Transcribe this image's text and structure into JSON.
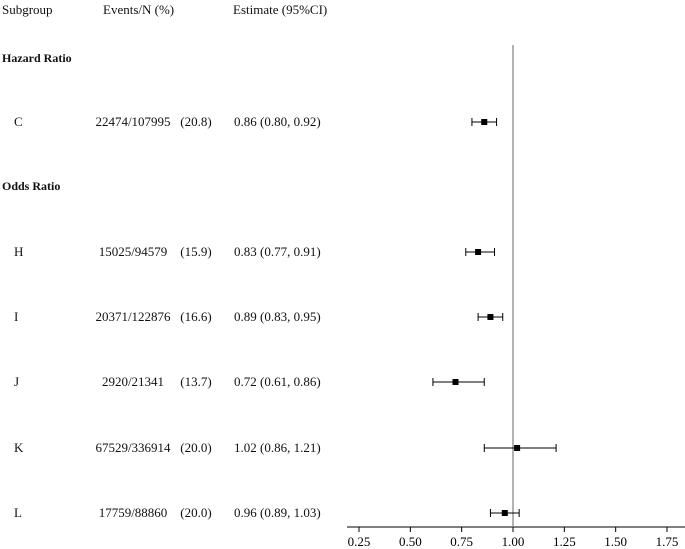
{
  "header": {
    "subgroup": "Subgroup",
    "events": "Events/N (%)",
    "estimate": "Estimate (95%CI)"
  },
  "sections": {
    "hazard": "Hazard Ratio",
    "odds": "Odds Ratio"
  },
  "rows": [
    {
      "label": "C",
      "events": "22474/107995",
      "pct": "(20.8)",
      "estimate": "0.86 (0.80, 0.92)"
    },
    {
      "label": "H",
      "events": "15025/94579",
      "pct": "(15.9)",
      "estimate": "0.83 (0.77, 0.91)"
    },
    {
      "label": "I",
      "events": "20371/122876",
      "pct": "(16.6)",
      "estimate": "0.89 (0.83, 0.95)"
    },
    {
      "label": "J",
      "events": "2920/21341",
      "pct": "(13.7)",
      "estimate": "0.72 (0.61, 0.86)"
    },
    {
      "label": "K",
      "events": "67529/336914",
      "pct": "(20.0)",
      "estimate": "1.02 (0.86, 1.21)"
    },
    {
      "label": "L",
      "events": "17759/88860",
      "pct": "(20.0)",
      "estimate": "0.96 (0.89, 1.03)"
    }
  ],
  "chart_data": {
    "type": "forest",
    "reference_line": 1.0,
    "xlim": [
      0.2,
      1.8
    ],
    "xticks": [
      "0.25",
      "0.50",
      "0.75",
      "1.00",
      "1.25",
      "1.50",
      "1.75"
    ],
    "xtick_values": [
      0.25,
      0.5,
      0.75,
      1.0,
      1.25,
      1.5,
      1.75
    ],
    "points": [
      {
        "label": "C",
        "group": "Hazard Ratio",
        "estimate": 0.86,
        "lower": 0.8,
        "upper": 0.92
      },
      {
        "label": "H",
        "group": "Odds Ratio",
        "estimate": 0.83,
        "lower": 0.77,
        "upper": 0.91
      },
      {
        "label": "I",
        "group": "Odds Ratio",
        "estimate": 0.89,
        "lower": 0.83,
        "upper": 0.95
      },
      {
        "label": "J",
        "group": "Odds Ratio",
        "estimate": 0.72,
        "lower": 0.61,
        "upper": 0.86
      },
      {
        "label": "K",
        "group": "Odds Ratio",
        "estimate": 1.02,
        "lower": 0.86,
        "upper": 1.21
      },
      {
        "label": "L",
        "group": "Odds Ratio",
        "estimate": 0.96,
        "lower": 0.89,
        "upper": 1.03
      }
    ],
    "colors": {
      "ink": "#000000",
      "reference": "#888888"
    }
  }
}
